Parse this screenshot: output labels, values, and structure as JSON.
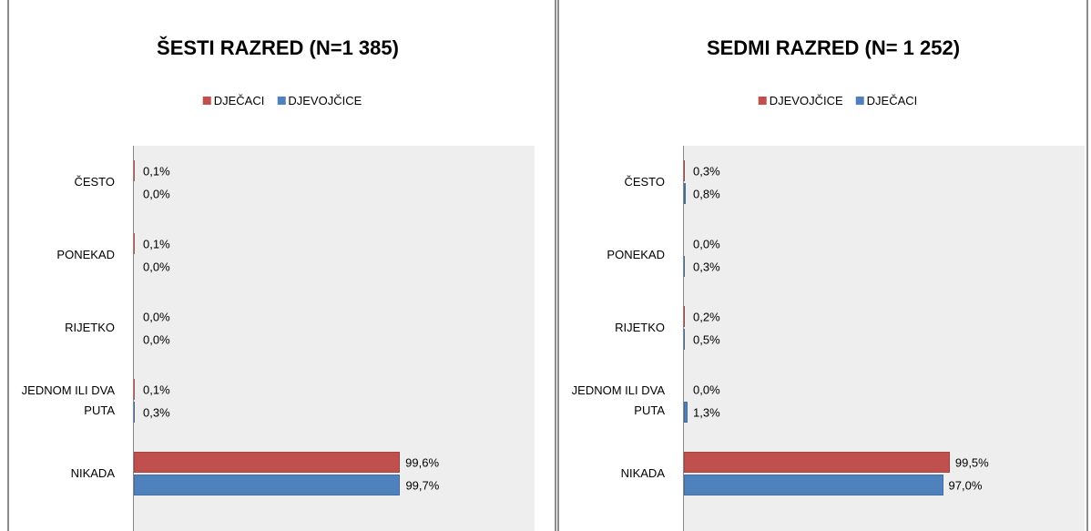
{
  "chart_data": [
    {
      "type": "bar",
      "title": "ŠESTI RAZRED (N=1 385)",
      "orientation": "horizontal",
      "categories": [
        "ČESTO",
        "PONEKAD",
        "RIJETKO",
        "JEDNOM ILI DVA PUTA",
        "NIKADA"
      ],
      "xlim": [
        0,
        150
      ],
      "series": [
        {
          "name": "DJEČACI",
          "color": "#c0504d",
          "values": [
            0.1,
            0.1,
            0.0,
            0.1,
            99.6
          ],
          "value_labels": [
            "0,1%",
            "0,1%",
            "0,0%",
            "0,1%",
            "99,6%"
          ]
        },
        {
          "name": "DJEVOJČICE",
          "color": "#4f81bd",
          "values": [
            0.0,
            0.0,
            0.0,
            0.3,
            99.7
          ],
          "value_labels": [
            "0,0%",
            "0,0%",
            "0,0%",
            "0,3%",
            "99,7%"
          ]
        }
      ]
    },
    {
      "type": "bar",
      "title": "SEDMI RAZRED (N= 1 252)",
      "orientation": "horizontal",
      "categories": [
        "ČESTO",
        "PONEKAD",
        "RIJETKO",
        "JEDNOM ILI DVA PUTA",
        "NIKADA"
      ],
      "xlim": [
        0,
        150
      ],
      "series": [
        {
          "name": "DJEVOJČICE",
          "color": "#c0504d",
          "values": [
            0.3,
            0.0,
            0.2,
            0.0,
            99.5
          ],
          "value_labels": [
            "0,3%",
            "0,0%",
            "0,2%",
            "0,0%",
            "99,5%"
          ]
        },
        {
          "name": "DJEČACI",
          "color": "#4f81bd",
          "values": [
            0.8,
            0.3,
            0.5,
            1.3,
            97.0
          ],
          "value_labels": [
            "0,8%",
            "0,3%",
            "0,5%",
            "1,3%",
            "97,0%"
          ]
        }
      ]
    }
  ]
}
